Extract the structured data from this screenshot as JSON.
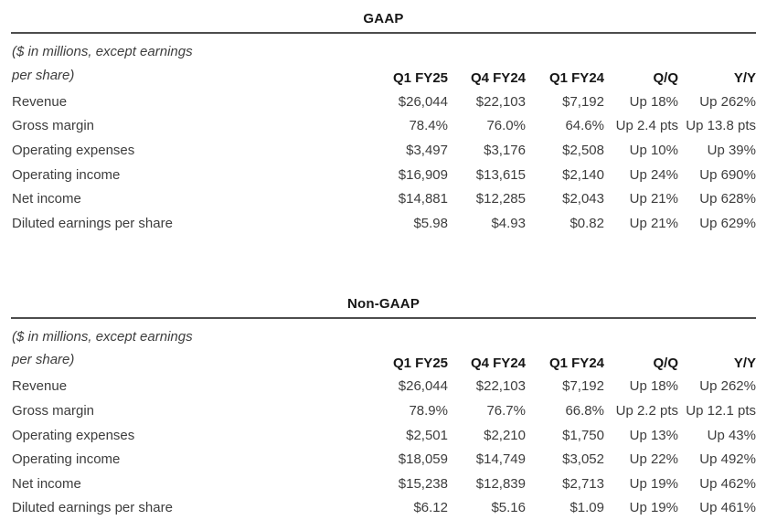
{
  "page": {
    "background": "#ffffff",
    "body_text_color": "#3d3d3d",
    "heading_text_color": "#161616",
    "rule_color": "#4d4d4d"
  },
  "tables": [
    {
      "title": "GAAP",
      "note_line1": "($ in millions, except earnings",
      "note_line2": "per share)",
      "columns": [
        "Q1 FY25",
        "Q4 FY24",
        "Q1 FY24",
        "Q/Q",
        "Y/Y"
      ],
      "rows": [
        {
          "label": "Revenue",
          "values": [
            "$26,044",
            "$22,103",
            "$7,192",
            "Up 18%",
            "Up 262%"
          ]
        },
        {
          "label": "Gross margin",
          "values": [
            "78.4%",
            "76.0%",
            "64.6%",
            "Up 2.4 pts",
            "Up 13.8 pts"
          ]
        },
        {
          "label": "Operating expenses",
          "values": [
            "$3,497",
            "$3,176",
            "$2,508",
            "Up 10%",
            "Up 39%"
          ]
        },
        {
          "label": "Operating income",
          "values": [
            "$16,909",
            "$13,615",
            "$2,140",
            "Up 24%",
            "Up 690%"
          ]
        },
        {
          "label": "Net income",
          "values": [
            "$14,881",
            "$12,285",
            "$2,043",
            "Up 21%",
            "Up 628%"
          ]
        },
        {
          "label": "Diluted earnings per share",
          "values": [
            "$5.98",
            "$4.93",
            "$0.82",
            "Up 21%",
            "Up 629%"
          ]
        }
      ]
    },
    {
      "title": "Non-GAAP",
      "note_line1": "($ in millions, except earnings",
      "note_line2": "per share)",
      "columns": [
        "Q1 FY25",
        "Q4 FY24",
        "Q1 FY24",
        "Q/Q",
        "Y/Y"
      ],
      "rows": [
        {
          "label": "Revenue",
          "values": [
            "$26,044",
            "$22,103",
            "$7,192",
            "Up 18%",
            "Up 262%"
          ]
        },
        {
          "label": "Gross margin",
          "values": [
            "78.9%",
            "76.7%",
            "66.8%",
            "Up 2.2 pts",
            "Up 12.1 pts"
          ]
        },
        {
          "label": "Operating expenses",
          "values": [
            "$2,501",
            "$2,210",
            "$1,750",
            "Up 13%",
            "Up 43%"
          ]
        },
        {
          "label": "Operating income",
          "values": [
            "$18,059",
            "$14,749",
            "$3,052",
            "Up 22%",
            "Up 492%"
          ]
        },
        {
          "label": "Net income",
          "values": [
            "$15,238",
            "$12,839",
            "$2,713",
            "Up 19%",
            "Up 462%"
          ]
        },
        {
          "label": "Diluted earnings per share",
          "values": [
            "$6.12",
            "$5.16",
            "$1.09",
            "Up 19%",
            "Up 461%"
          ]
        }
      ]
    }
  ]
}
